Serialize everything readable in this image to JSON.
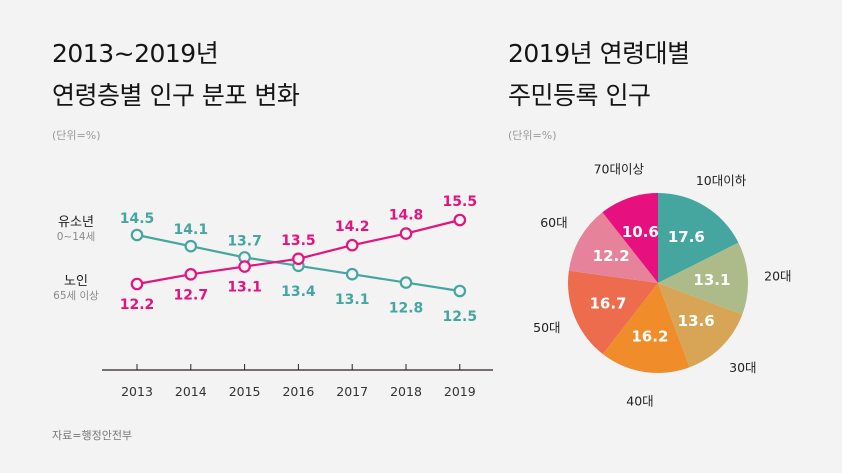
{
  "left": {
    "title_line1": "2013~2019년",
    "title_line2": "연령층별 인구 분포 변화",
    "unit": "(단위=%)",
    "source": "자료=행정안전부"
  },
  "right": {
    "title_line1": "2019년 연령대별",
    "title_line2": "주민등록 인구",
    "unit": "(단위=%)"
  },
  "chart_data": [
    {
      "type": "line",
      "title": "2013~2019년 연령층별 인구 분포 변화",
      "unit": "%",
      "x": [
        "2013",
        "2014",
        "2015",
        "2016",
        "2017",
        "2018",
        "2019"
      ],
      "series": [
        {
          "name": "유소년",
          "subtitle": "0~14세",
          "color": "#45a6a0",
          "values": [
            14.5,
            14.1,
            13.7,
            13.4,
            13.1,
            12.8,
            12.5
          ]
        },
        {
          "name": "노인",
          "subtitle": "65세 이상",
          "color": "#e5137e",
          "values": [
            12.2,
            12.7,
            13.1,
            13.5,
            14.2,
            14.8,
            15.5
          ]
        }
      ],
      "grid": false,
      "legend": "left"
    },
    {
      "type": "pie",
      "title": "2019년 연령대별 주민등록 인구",
      "unit": "%",
      "slices": [
        {
          "label": "10대이하",
          "value": 17.6,
          "color": "#45a6a0"
        },
        {
          "label": "20대",
          "value": 13.1,
          "color": "#adba8a"
        },
        {
          "label": "30대",
          "value": 13.6,
          "color": "#d8a556"
        },
        {
          "label": "40대",
          "value": 16.2,
          "color": "#f08c2a"
        },
        {
          "label": "50대",
          "value": 16.7,
          "color": "#ee6c4e"
        },
        {
          "label": "60대",
          "value": 12.2,
          "color": "#e6829a"
        },
        {
          "label": "70대이상",
          "value": 10.6,
          "color": "#e6117f"
        }
      ]
    }
  ]
}
